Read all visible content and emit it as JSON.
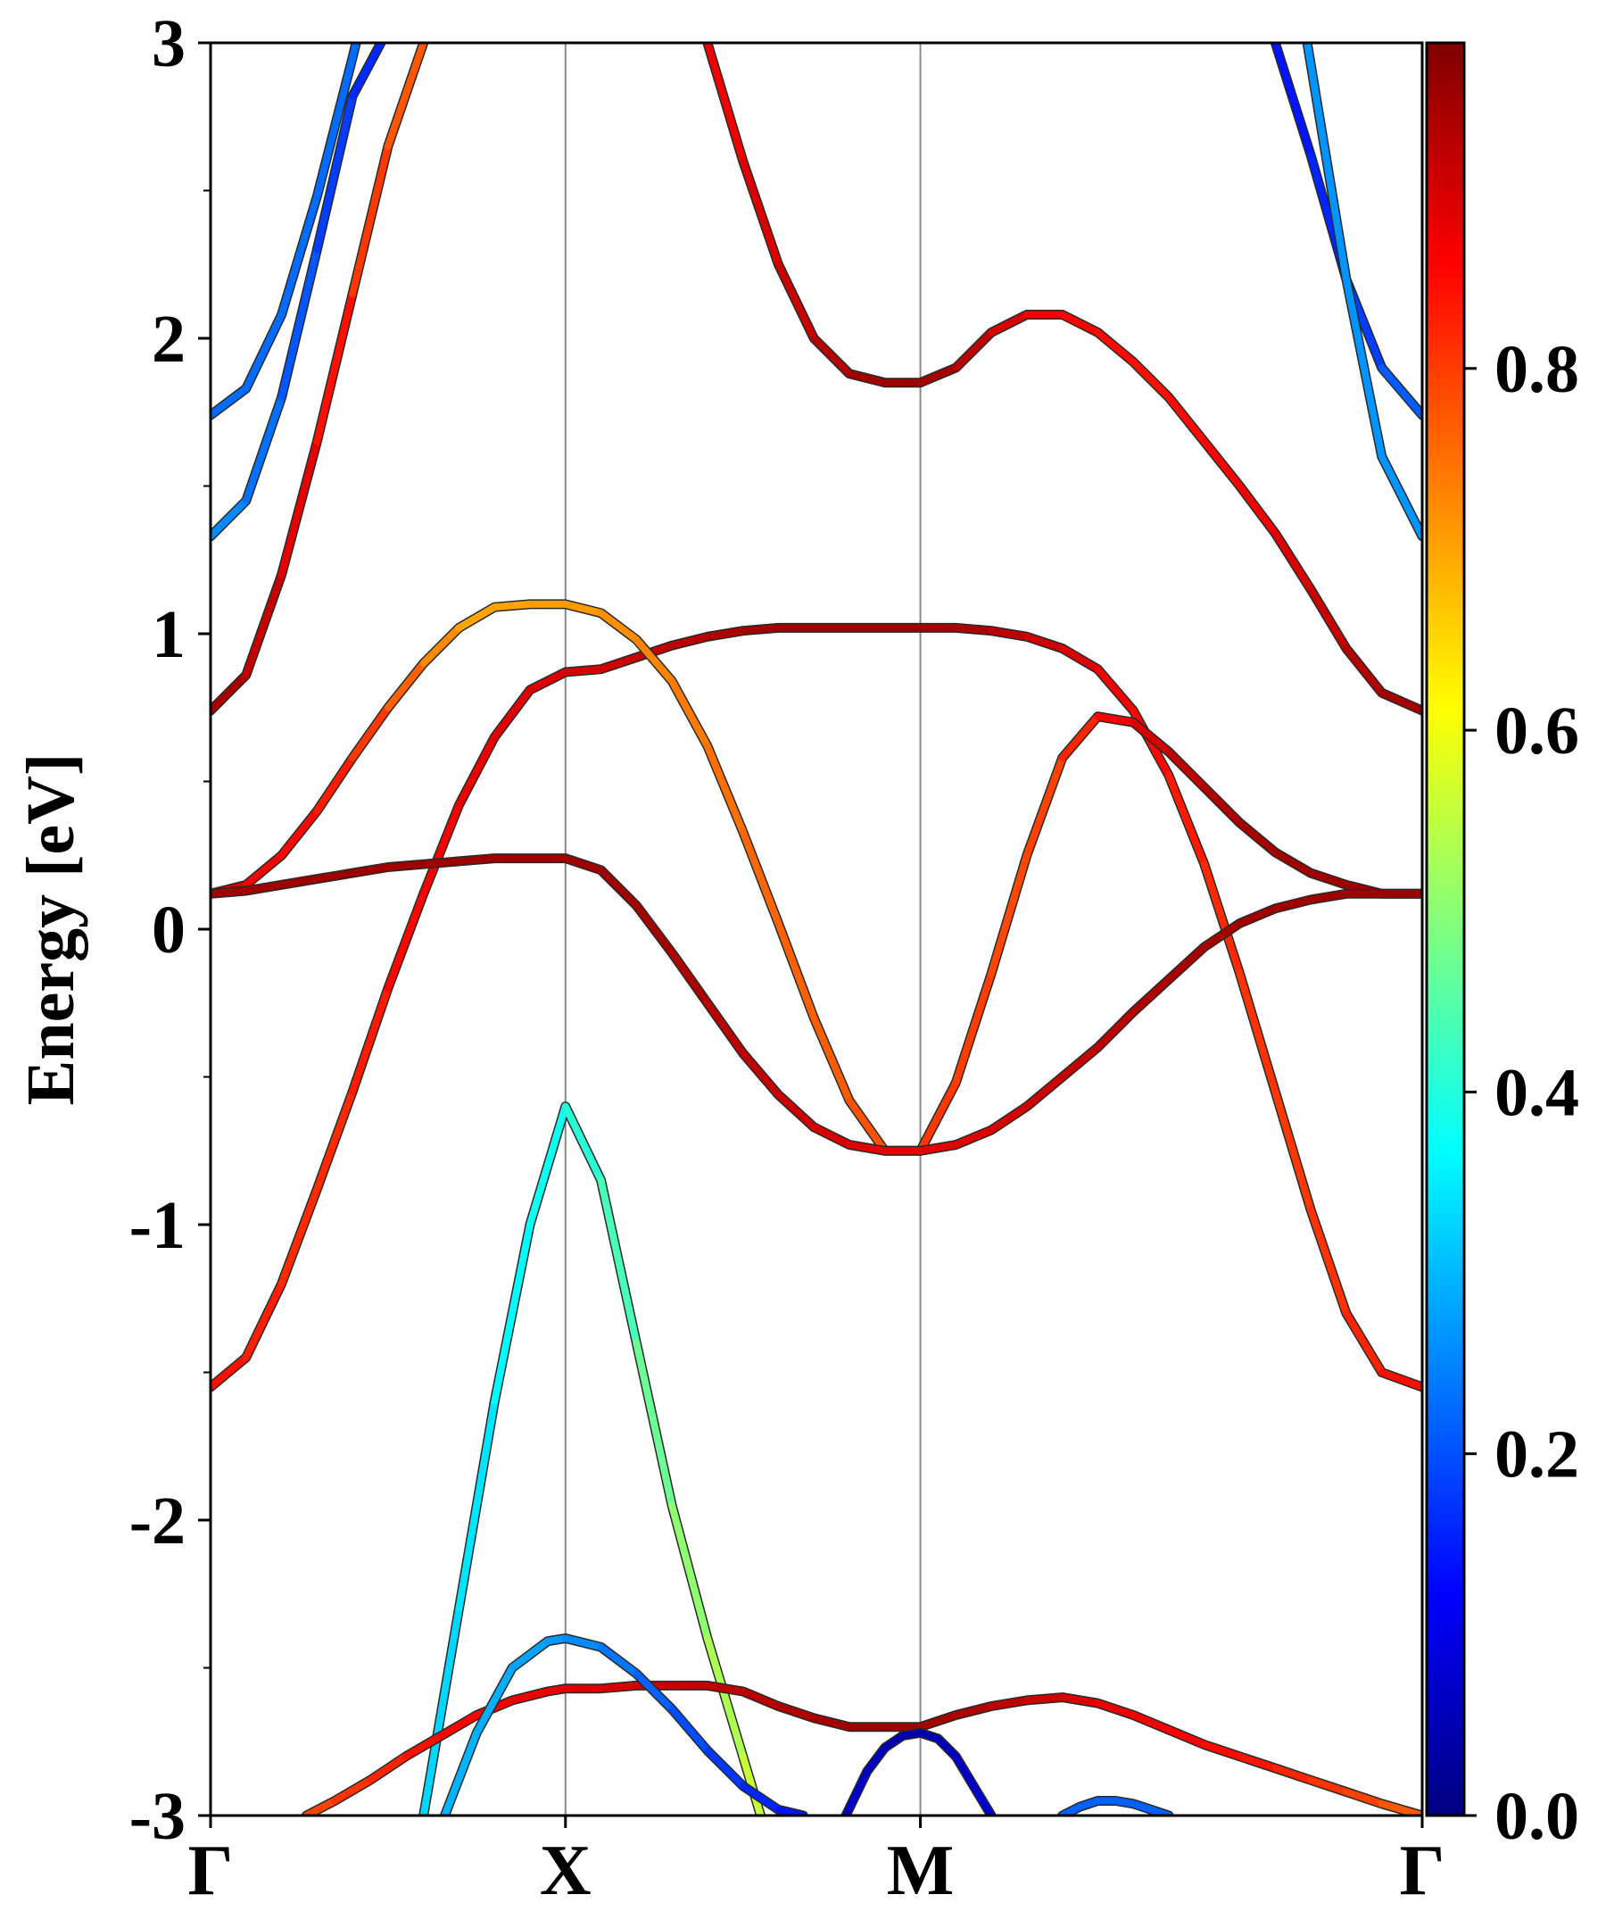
{
  "chart_data": {
    "type": "line",
    "title": "",
    "xlabel": "",
    "ylabel": "Energy [eV]",
    "ylim": [
      -3,
      3
    ],
    "grid": false,
    "k_points": [
      "Γ",
      "X",
      "M",
      "Γ"
    ],
    "k_positions": [
      0,
      1,
      2,
      3.414
    ],
    "yticks": [
      "-3",
      "-2",
      "-1",
      "0",
      "1",
      "2",
      "3"
    ],
    "colorbar": {
      "ticks": [
        "0.0",
        "0.2",
        "0.4",
        "0.6",
        "0.8"
      ],
      "range": [
        0,
        0.98
      ],
      "colormap": "jet"
    },
    "series": [
      {
        "x": [
          0,
          0.1,
          0.2,
          0.3,
          0.4,
          0.41
        ],
        "y": [
          1.74,
          1.83,
          2.08,
          2.48,
          2.95,
          3.0
        ],
        "weights": [
          0.23,
          0.23,
          0.23,
          0.23,
          0.23,
          0.23
        ]
      },
      {
        "x": [
          0,
          0.1,
          0.2,
          0.3,
          0.4,
          0.48
        ],
        "y": [
          1.33,
          1.45,
          1.8,
          2.3,
          2.82,
          3.0
        ],
        "weights": [
          0.27,
          0.25,
          0.22,
          0.2,
          0.17,
          0.16
        ]
      },
      {
        "x": [
          0,
          0.1,
          0.2,
          0.3,
          0.4,
          0.5,
          0.6
        ],
        "y": [
          0.74,
          0.86,
          1.2,
          1.65,
          2.15,
          2.65,
          3.0
        ],
        "weights": [
          0.97,
          0.95,
          0.92,
          0.88,
          0.84,
          0.8,
          0.78
        ]
      },
      {
        "x": [
          0,
          0.1,
          0.2,
          0.3,
          0.4,
          0.5,
          0.6,
          0.7,
          0.8,
          0.9,
          1.0,
          1.1,
          1.2,
          1.3,
          1.4,
          1.5,
          1.6,
          1.7,
          1.8,
          1.9,
          2.0,
          2.1,
          2.2,
          2.3,
          2.4,
          2.5,
          2.6,
          2.7,
          2.8,
          2.9,
          3.0,
          3.1,
          3.2,
          3.3,
          3.414
        ],
        "y": [
          -1.55,
          -1.45,
          -1.2,
          -0.88,
          -0.55,
          -0.2,
          0.12,
          0.42,
          0.65,
          0.81,
          0.87,
          0.88,
          0.92,
          0.96,
          0.99,
          1.01,
          1.02,
          1.02,
          1.02,
          1.02,
          1.02,
          1.02,
          1.01,
          0.99,
          0.95,
          0.88,
          0.74,
          0.52,
          0.22,
          -0.15,
          -0.55,
          -0.95,
          -1.3,
          -1.5,
          -1.55
        ],
        "weights": [
          0.87,
          0.85,
          0.84,
          0.83,
          0.84,
          0.86,
          0.88,
          0.89,
          0.9,
          0.91,
          0.91,
          0.92,
          0.93,
          0.94,
          0.95,
          0.96,
          0.97,
          0.97,
          0.97,
          0.97,
          0.97,
          0.96,
          0.95,
          0.93,
          0.92,
          0.9,
          0.88,
          0.86,
          0.84,
          0.83,
          0.82,
          0.82,
          0.83,
          0.85,
          0.87
        ]
      },
      {
        "x": [
          0,
          0.1,
          0.2,
          0.3,
          0.4,
          0.5,
          0.6,
          0.7,
          0.8,
          0.9,
          1.0,
          1.1,
          1.2,
          1.3,
          1.4,
          1.5,
          1.6,
          1.7,
          1.8,
          1.9,
          2.0,
          2.1,
          2.2,
          2.3,
          2.4,
          2.5,
          2.6,
          2.7,
          2.8,
          2.9,
          3.0,
          3.1,
          3.2,
          3.3,
          3.414
        ],
        "y": [
          0.12,
          0.15,
          0.25,
          0.4,
          0.58,
          0.75,
          0.9,
          1.02,
          1.09,
          1.1,
          1.1,
          1.07,
          0.98,
          0.84,
          0.62,
          0.33,
          0.02,
          -0.3,
          -0.58,
          -0.75,
          -0.75,
          -0.52,
          -0.15,
          0.25,
          0.58,
          0.72,
          0.7,
          0.6,
          0.48,
          0.36,
          0.26,
          0.19,
          0.15,
          0.12,
          0.12
        ],
        "weights": [
          0.95,
          0.9,
          0.88,
          0.86,
          0.84,
          0.8,
          0.76,
          0.72,
          0.71,
          0.72,
          0.72,
          0.73,
          0.74,
          0.75,
          0.76,
          0.77,
          0.78,
          0.78,
          0.79,
          0.8,
          0.82,
          0.82,
          0.81,
          0.8,
          0.82,
          0.86,
          0.9,
          0.93,
          0.95,
          0.96,
          0.97,
          0.97,
          0.97,
          0.97,
          0.97
        ]
      },
      {
        "x": [
          0,
          0.1,
          0.2,
          0.3,
          0.4,
          0.5,
          0.6,
          0.7,
          0.8,
          0.9,
          1.0,
          1.1,
          1.2,
          1.3,
          1.4,
          1.5,
          1.6,
          1.7,
          1.8,
          1.9,
          2.0,
          2.1,
          2.2,
          2.3,
          2.4,
          2.5,
          2.6,
          2.7,
          2.8,
          2.9,
          3.0,
          3.1,
          3.2,
          3.3,
          3.414
        ],
        "y": [
          0.12,
          0.13,
          0.15,
          0.17,
          0.19,
          0.21,
          0.22,
          0.23,
          0.24,
          0.24,
          0.24,
          0.2,
          0.08,
          -0.08,
          -0.25,
          -0.42,
          -0.56,
          -0.67,
          -0.73,
          -0.75,
          -0.75,
          -0.73,
          -0.68,
          -0.6,
          -0.5,
          -0.4,
          -0.28,
          -0.17,
          -0.06,
          0.02,
          0.07,
          0.1,
          0.12,
          0.12,
          0.12
        ],
        "weights": [
          0.97,
          0.97,
          0.97,
          0.97,
          0.97,
          0.97,
          0.97,
          0.97,
          0.97,
          0.97,
          0.97,
          0.97,
          0.97,
          0.96,
          0.95,
          0.94,
          0.93,
          0.92,
          0.91,
          0.9,
          0.9,
          0.9,
          0.91,
          0.92,
          0.93,
          0.94,
          0.95,
          0.96,
          0.96,
          0.97,
          0.97,
          0.97,
          0.97,
          0.97,
          0.97
        ]
      },
      {
        "x": [
          1.4,
          1.5,
          1.6,
          1.7,
          1.8,
          1.9,
          2.0,
          2.1,
          2.2,
          2.3,
          2.4,
          2.5,
          2.6,
          2.7,
          2.8,
          2.9,
          3.0,
          3.1,
          3.2,
          3.3,
          3.414
        ],
        "y": [
          3.0,
          2.6,
          2.25,
          2.0,
          1.88,
          1.85,
          1.85,
          1.9,
          2.02,
          2.08,
          2.08,
          2.02,
          1.92,
          1.8,
          1.65,
          1.5,
          1.34,
          1.15,
          0.95,
          0.8,
          0.74
        ],
        "weights": [
          0.88,
          0.9,
          0.92,
          0.94,
          0.96,
          0.97,
          0.97,
          0.96,
          0.93,
          0.9,
          0.88,
          0.87,
          0.86,
          0.86,
          0.87,
          0.88,
          0.9,
          0.92,
          0.94,
          0.96,
          0.97
        ]
      },
      {
        "x": [
          3.0,
          3.1,
          3.2,
          3.3,
          3.414
        ],
        "y": [
          3.0,
          2.62,
          2.2,
          1.9,
          1.74
        ],
        "weights": [
          0.14,
          0.15,
          0.17,
          0.2,
          0.23
        ]
      },
      {
        "x": [
          3.09,
          3.2,
          3.3,
          3.414
        ],
        "y": [
          3.0,
          2.2,
          1.6,
          1.33
        ],
        "weights": [
          0.27,
          0.27,
          0.27,
          0.27
        ]
      },
      {
        "x": [
          0.6,
          0.7,
          0.8,
          0.9,
          1.0,
          1.1,
          1.2,
          1.3,
          1.4,
          1.5,
          1.55
        ],
        "y": [
          -3.0,
          -2.3,
          -1.6,
          -1.0,
          -0.6,
          -0.85,
          -1.4,
          -1.95,
          -2.4,
          -2.8,
          -3.0
        ],
        "weights": [
          0.33,
          0.34,
          0.36,
          0.38,
          0.4,
          0.43,
          0.46,
          0.5,
          0.53,
          0.56,
          0.58
        ]
      },
      {
        "x": [
          0.27,
          0.35,
          0.45,
          0.55,
          0.65,
          0.75,
          0.85,
          0.95,
          1.0,
          1.1,
          1.2,
          1.3,
          1.4,
          1.5,
          1.6,
          1.7,
          1.8,
          1.9,
          2.0,
          2.1,
          2.2,
          2.3,
          2.4,
          2.5,
          2.6,
          2.7,
          2.8,
          2.9,
          3.0,
          3.1,
          3.2,
          3.3,
          3.414
        ],
        "y": [
          -3.0,
          -2.95,
          -2.88,
          -2.8,
          -2.73,
          -2.66,
          -2.61,
          -2.58,
          -2.57,
          -2.57,
          -2.56,
          -2.56,
          -2.56,
          -2.58,
          -2.63,
          -2.67,
          -2.7,
          -2.7,
          -2.7,
          -2.66,
          -2.63,
          -2.61,
          -2.6,
          -2.62,
          -2.66,
          -2.71,
          -2.76,
          -2.8,
          -2.84,
          -2.88,
          -2.92,
          -2.96,
          -3.0
        ],
        "weights": [
          0.8,
          0.82,
          0.83,
          0.85,
          0.87,
          0.88,
          0.89,
          0.9,
          0.9,
          0.91,
          0.92,
          0.93,
          0.93,
          0.94,
          0.95,
          0.96,
          0.97,
          0.97,
          0.97,
          0.96,
          0.95,
          0.93,
          0.92,
          0.9,
          0.89,
          0.88,
          0.87,
          0.86,
          0.85,
          0.83,
          0.82,
          0.8,
          0.78
        ]
      },
      {
        "x": [
          0.66,
          0.75,
          0.85,
          0.95,
          1.0,
          1.1,
          1.2,
          1.3,
          1.4,
          1.5,
          1.6,
          1.67
        ],
        "y": [
          -3.0,
          -2.72,
          -2.5,
          -2.41,
          -2.4,
          -2.43,
          -2.52,
          -2.64,
          -2.78,
          -2.9,
          -2.98,
          -3.0
        ],
        "weights": [
          0.3,
          0.3,
          0.29,
          0.28,
          0.27,
          0.25,
          0.23,
          0.21,
          0.19,
          0.17,
          0.15,
          0.14
        ]
      },
      {
        "x": [
          1.79,
          1.85,
          1.9,
          1.95,
          2.0,
          2.05,
          2.1,
          2.15,
          2.2
        ],
        "y": [
          -3.0,
          -2.85,
          -2.77,
          -2.73,
          -2.72,
          -2.74,
          -2.8,
          -2.9,
          -3.0
        ],
        "weights": [
          0.07,
          0.06,
          0.05,
          0.04,
          0.04,
          0.05,
          0.06,
          0.07,
          0.08
        ]
      },
      {
        "x": [
          2.4,
          2.45,
          2.5,
          2.55,
          2.6,
          2.65,
          2.7
        ],
        "y": [
          -3.0,
          -2.97,
          -2.95,
          -2.95,
          -2.96,
          -2.98,
          -3.0
        ],
        "weights": [
          0.22,
          0.22,
          0.22,
          0.22,
          0.22,
          0.22,
          0.22
        ]
      }
    ]
  }
}
